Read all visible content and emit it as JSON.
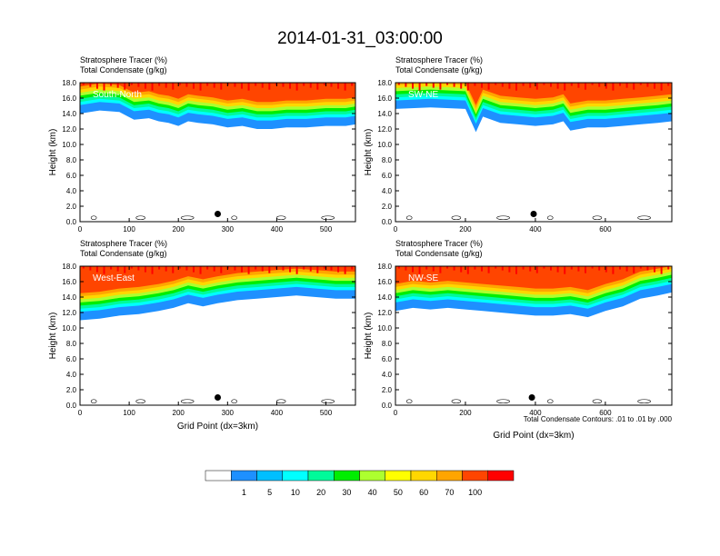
{
  "figure": {
    "title": "2014-01-31_03:00:00",
    "footnote": "Total Condensate Contours: .01 to .01 by .000"
  },
  "colorbar": {
    "labels": [
      "1",
      "5",
      "10",
      "20",
      "30",
      "40",
      "50",
      "60",
      "70",
      "100"
    ],
    "colors": [
      "#ffffff",
      "#1e90ff",
      "#00bfff",
      "#00ffff",
      "#00fa9a",
      "#00ee00",
      "#adff2f",
      "#ffff00",
      "#ffd700",
      "#ffa500",
      "#ff4500",
      "#ff0000"
    ]
  },
  "chart_data": [
    {
      "type": "heatmap",
      "panel_label": "South-North",
      "header_line1": "Stratosphere Tracer   (%)",
      "header_line2": "Total Condensate   (g/kg)",
      "ylabel": "Height (km)",
      "xlabel": "",
      "xlim": [
        0,
        560
      ],
      "xticks": [
        "0",
        "100",
        "200",
        "300",
        "400",
        "500"
      ],
      "xtick_values": [
        0,
        100,
        200,
        300,
        400,
        500
      ],
      "ylim": [
        0,
        18
      ],
      "yticks": [
        "0.0",
        "2.0",
        "4.0",
        "6.0",
        "8.0",
        "10.0",
        "12.0",
        "14.0",
        "16.0",
        "18.0"
      ],
      "marker_x": 280,
      "marker_y": 1.0,
      "tropopause_x": [
        0,
        40,
        80,
        110,
        140,
        160,
        180,
        200,
        220,
        240,
        270,
        300,
        330,
        360,
        390,
        420,
        460,
        500,
        540,
        560
      ],
      "tropopause_y": [
        14.8,
        15.2,
        15.0,
        14.0,
        14.2,
        13.8,
        13.6,
        13.2,
        13.8,
        13.6,
        13.4,
        13.0,
        13.2,
        12.8,
        12.8,
        13.0,
        13.0,
        13.2,
        13.2,
        13.4
      ]
    },
    {
      "type": "heatmap",
      "panel_label": "SW-NE",
      "header_line1": "Stratosphere Tracer   (%)",
      "header_line2": "Total Condensate   (g/kg)",
      "ylabel": "Height (km)",
      "xlabel": "",
      "xlim": [
        0,
        790
      ],
      "xticks": [
        "0",
        "200",
        "400",
        "600"
      ],
      "xtick_values": [
        0,
        200,
        400,
        600
      ],
      "ylim": [
        0,
        18
      ],
      "yticks": [
        "0.0",
        "2.0",
        "4.0",
        "6.0",
        "8.0",
        "10.0",
        "12.0",
        "14.0",
        "16.0",
        "18.0"
      ],
      "marker_x": 395,
      "marker_y": 1.0,
      "tropopause_x": [
        0,
        100,
        200,
        230,
        250,
        300,
        350,
        400,
        450,
        480,
        500,
        550,
        600,
        650,
        700,
        750,
        790
      ],
      "tropopause_y": [
        15.4,
        15.6,
        15.4,
        12.4,
        14.4,
        13.6,
        13.4,
        13.2,
        13.4,
        13.8,
        12.6,
        13.0,
        13.0,
        13.2,
        13.4,
        13.6,
        13.8
      ]
    },
    {
      "type": "heatmap",
      "panel_label": "West-East",
      "header_line1": "Stratosphere Tracer   (%)",
      "header_line2": "Total Condensate   (g/kg)",
      "ylabel": "Height (km)",
      "xlabel": "Grid Point (dx=3km)",
      "xlim": [
        0,
        560
      ],
      "xticks": [
        "0",
        "100",
        "200",
        "300",
        "400",
        "500"
      ],
      "xtick_values": [
        0,
        100,
        200,
        300,
        400,
        500
      ],
      "ylim": [
        0,
        18
      ],
      "yticks": [
        "0.0",
        "2.0",
        "4.0",
        "6.0",
        "8.0",
        "10.0",
        "12.0",
        "14.0",
        "16.0",
        "18.0"
      ],
      "marker_x": 280,
      "marker_y": 1.0,
      "tropopause_x": [
        0,
        40,
        80,
        120,
        160,
        190,
        220,
        250,
        280,
        320,
        360,
        400,
        440,
        480,
        520,
        560
      ],
      "tropopause_y": [
        11.8,
        12.0,
        12.4,
        12.6,
        13.0,
        13.4,
        14.0,
        13.6,
        14.0,
        14.4,
        14.6,
        14.8,
        15.0,
        14.8,
        14.6,
        14.6
      ]
    },
    {
      "type": "heatmap",
      "panel_label": "NW-SE",
      "header_line1": "Stratosphere Tracer   (%)",
      "header_line2": "Total Condensate   (g/kg)",
      "ylabel": "Height (km)",
      "xlabel": "Grid Point (dx=3km)",
      "xlim": [
        0,
        790
      ],
      "xticks": [
        "0",
        "200",
        "400",
        "600"
      ],
      "xtick_values": [
        0,
        200,
        400,
        600
      ],
      "ylim": [
        0,
        18
      ],
      "yticks": [
        "0.0",
        "2.0",
        "4.0",
        "6.0",
        "8.0",
        "10.0",
        "12.0",
        "14.0",
        "16.0",
        "18.0"
      ],
      "marker_x": 390,
      "marker_y": 1.0,
      "tropopause_x": [
        0,
        50,
        100,
        150,
        200,
        250,
        300,
        350,
        400,
        450,
        500,
        550,
        600,
        650,
        700,
        750,
        790
      ],
      "tropopause_y": [
        13.0,
        13.4,
        13.2,
        13.4,
        13.2,
        13.0,
        12.8,
        12.6,
        12.4,
        12.4,
        12.6,
        12.2,
        13.0,
        13.6,
        14.6,
        15.0,
        15.4
      ]
    }
  ]
}
